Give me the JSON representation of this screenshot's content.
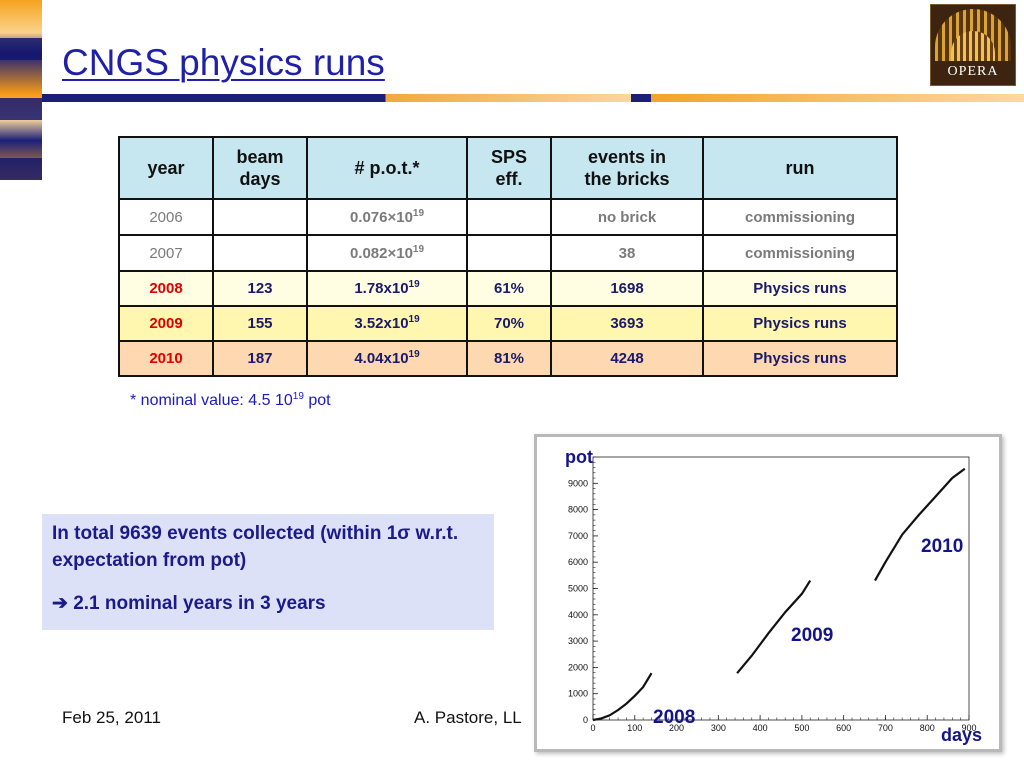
{
  "title": "CNGS physics runs",
  "logo_text": "OPERA",
  "table": {
    "headers": [
      "year",
      "beam days",
      "# p.o.t.*",
      "SPS eff.",
      "events in the bricks",
      "run"
    ],
    "rows": [
      {
        "year": "2006",
        "beam_days": "",
        "pot_mant": "0.076×10",
        "pot_exp": "19",
        "sps_eff": "",
        "events": "no brick",
        "run": "commissioning"
      },
      {
        "year": "2007",
        "beam_days": "",
        "pot_mant": "0.082×10",
        "pot_exp": "19",
        "sps_eff": "",
        "events": "38",
        "run": "commissioning"
      },
      {
        "year": "2008",
        "beam_days": "123",
        "pot_mant": "1.78x10",
        "pot_exp": "19",
        "sps_eff": "61%",
        "events": "1698",
        "run": "Physics runs"
      },
      {
        "year": "2009",
        "beam_days": "155",
        "pot_mant": "3.52x10",
        "pot_exp": "19",
        "sps_eff": "70%",
        "events": "3693",
        "run": "Physics runs"
      },
      {
        "year": "2010",
        "beam_days": "187",
        "pot_mant": "4.04x10",
        "pot_exp": "19",
        "sps_eff": "81%",
        "events": "4248",
        "run": "Physics runs"
      }
    ]
  },
  "footnote": {
    "prefix": "* nominal value: 4.5 10",
    "exp": "19",
    "suffix": " pot"
  },
  "note": {
    "line1": "In total 9639 events collected (within 1σ w.r.t. expectation from pot)",
    "line2": "➔ 2.1 nominal years in 3 years"
  },
  "footer": {
    "date": "Feb 25, 2011",
    "author": "A. Pastore, LL"
  },
  "chart_data": {
    "type": "line",
    "ylabel": "pot",
    "xlabel": "days",
    "xlim": [
      0,
      900
    ],
    "ylim": [
      0,
      10000
    ],
    "x_ticks": [
      "0",
      "100",
      "200",
      "300",
      "400",
      "500",
      "600",
      "700",
      "800",
      "900"
    ],
    "y_ticks": [
      "0",
      "1000",
      "2000",
      "3000",
      "4000",
      "5000",
      "6000",
      "7000",
      "8000",
      "9000"
    ],
    "series": [
      {
        "name": "2008",
        "x": [
          0,
          20,
          40,
          60,
          80,
          100,
          120,
          140
        ],
        "y": [
          0,
          60,
          180,
          380,
          620,
          920,
          1250,
          1780
        ]
      },
      {
        "name": "2009",
        "x": [
          345,
          380,
          420,
          460,
          500,
          520
        ],
        "y": [
          1780,
          2450,
          3300,
          4100,
          4800,
          5300
        ]
      },
      {
        "name": "2010",
        "x": [
          675,
          700,
          740,
          780,
          820,
          860,
          890
        ],
        "y": [
          5300,
          6000,
          7050,
          7800,
          8500,
          9200,
          9550
        ]
      }
    ],
    "label_colors": {
      "axis": "#111111",
      "year_labels": "#14148a"
    }
  }
}
